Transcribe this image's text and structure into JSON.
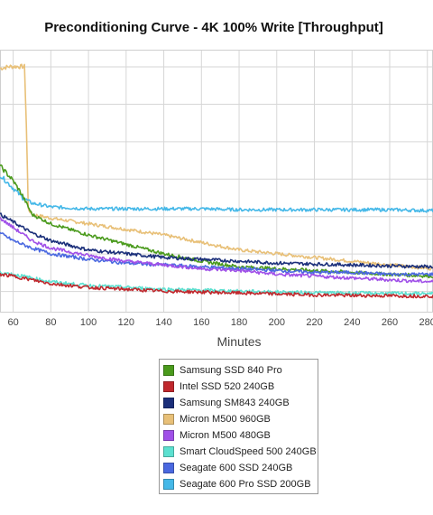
{
  "chart_data": {
    "type": "line",
    "title": "Preconditioning Curve - 4K 100% Write [Throughput]",
    "xlabel": "Minutes",
    "ylabel": "",
    "x_ticks": [
      60,
      80,
      100,
      120,
      140,
      160,
      180,
      200,
      220,
      240,
      260,
      280
    ],
    "xlim": [
      53,
      283
    ],
    "ylim": [
      0,
      140
    ],
    "grid": true,
    "legend_position": "bottom",
    "series": [
      {
        "name": "Samsung SSD 840 Pro",
        "color": "#4a9a1c",
        "x": [
          53,
          60,
          65,
          70,
          80,
          100,
          120,
          140,
          160,
          180,
          200,
          220,
          240,
          260,
          283
        ],
        "y": [
          78,
          70,
          62,
          52,
          47,
          41,
          36,
          31,
          27,
          24,
          23,
          22,
          21,
          20,
          19
        ]
      },
      {
        "name": "Intel SSD 520 240GB",
        "color": "#c0282d",
        "x": [
          53,
          60,
          70,
          80,
          100,
          120,
          140,
          160,
          180,
          200,
          220,
          240,
          260,
          283
        ],
        "y": [
          20,
          19,
          17,
          15,
          13,
          12,
          11,
          10.5,
          10,
          9.5,
          9,
          8.7,
          8.5,
          8.3
        ]
      },
      {
        "name": "Samsung SM843 240GB",
        "color": "#1b2f7a",
        "x": [
          53,
          60,
          70,
          80,
          100,
          120,
          140,
          160,
          180,
          200,
          220,
          240,
          260,
          283
        ],
        "y": [
          52,
          48,
          42,
          38,
          33,
          31,
          29,
          28,
          27,
          26,
          25.5,
          25,
          24.5,
          24
        ]
      },
      {
        "name": "Micron M500 960GB",
        "color": "#e8c078",
        "x": [
          53,
          58,
          62,
          66,
          67,
          68,
          70,
          80,
          100,
          120,
          140,
          160,
          180,
          200,
          220,
          240,
          260,
          283
        ],
        "y": [
          130,
          131,
          131,
          131,
          100,
          55,
          52,
          50,
          47,
          44,
          41,
          37,
          33,
          31,
          29,
          27,
          25,
          23
        ]
      },
      {
        "name": "Micron M500 480GB",
        "color": "#a050e8",
        "x": [
          53,
          60,
          70,
          80,
          100,
          120,
          140,
          160,
          180,
          200,
          220,
          240,
          260,
          283
        ],
        "y": [
          50,
          45,
          38,
          34,
          30,
          27,
          25,
          23,
          22,
          20,
          19,
          18,
          17,
          16
        ]
      },
      {
        "name": "Smart CloudSpeed 500 240GB",
        "color": "#5ce0d0",
        "x": [
          53,
          60,
          70,
          80,
          100,
          120,
          140,
          160,
          180,
          200,
          220,
          240,
          260,
          283
        ],
        "y": [
          21,
          20,
          18,
          16,
          14,
          13,
          12,
          11.5,
          11,
          10.5,
          10.2,
          10,
          9.8,
          9.6
        ]
      },
      {
        "name": "Seagate 600 SSD 240GB",
        "color": "#4a68e0",
        "x": [
          53,
          60,
          70,
          80,
          100,
          120,
          140,
          160,
          180,
          200,
          220,
          240,
          260,
          283
        ],
        "y": [
          42,
          38,
          34,
          31,
          28,
          26,
          25,
          24,
          23,
          22,
          21,
          21,
          20,
          20
        ]
      },
      {
        "name": "Seagate 600 Pro SSD 200GB",
        "color": "#45b8e8",
        "x": [
          53,
          55,
          60,
          65,
          70,
          80,
          100,
          120,
          140,
          160,
          180,
          200,
          220,
          240,
          260,
          283
        ],
        "y": [
          73,
          71,
          66,
          61,
          58,
          56,
          55,
          55,
          55,
          55,
          54.5,
          54.5,
          54.5,
          54.5,
          54.5,
          54
        ]
      }
    ]
  }
}
